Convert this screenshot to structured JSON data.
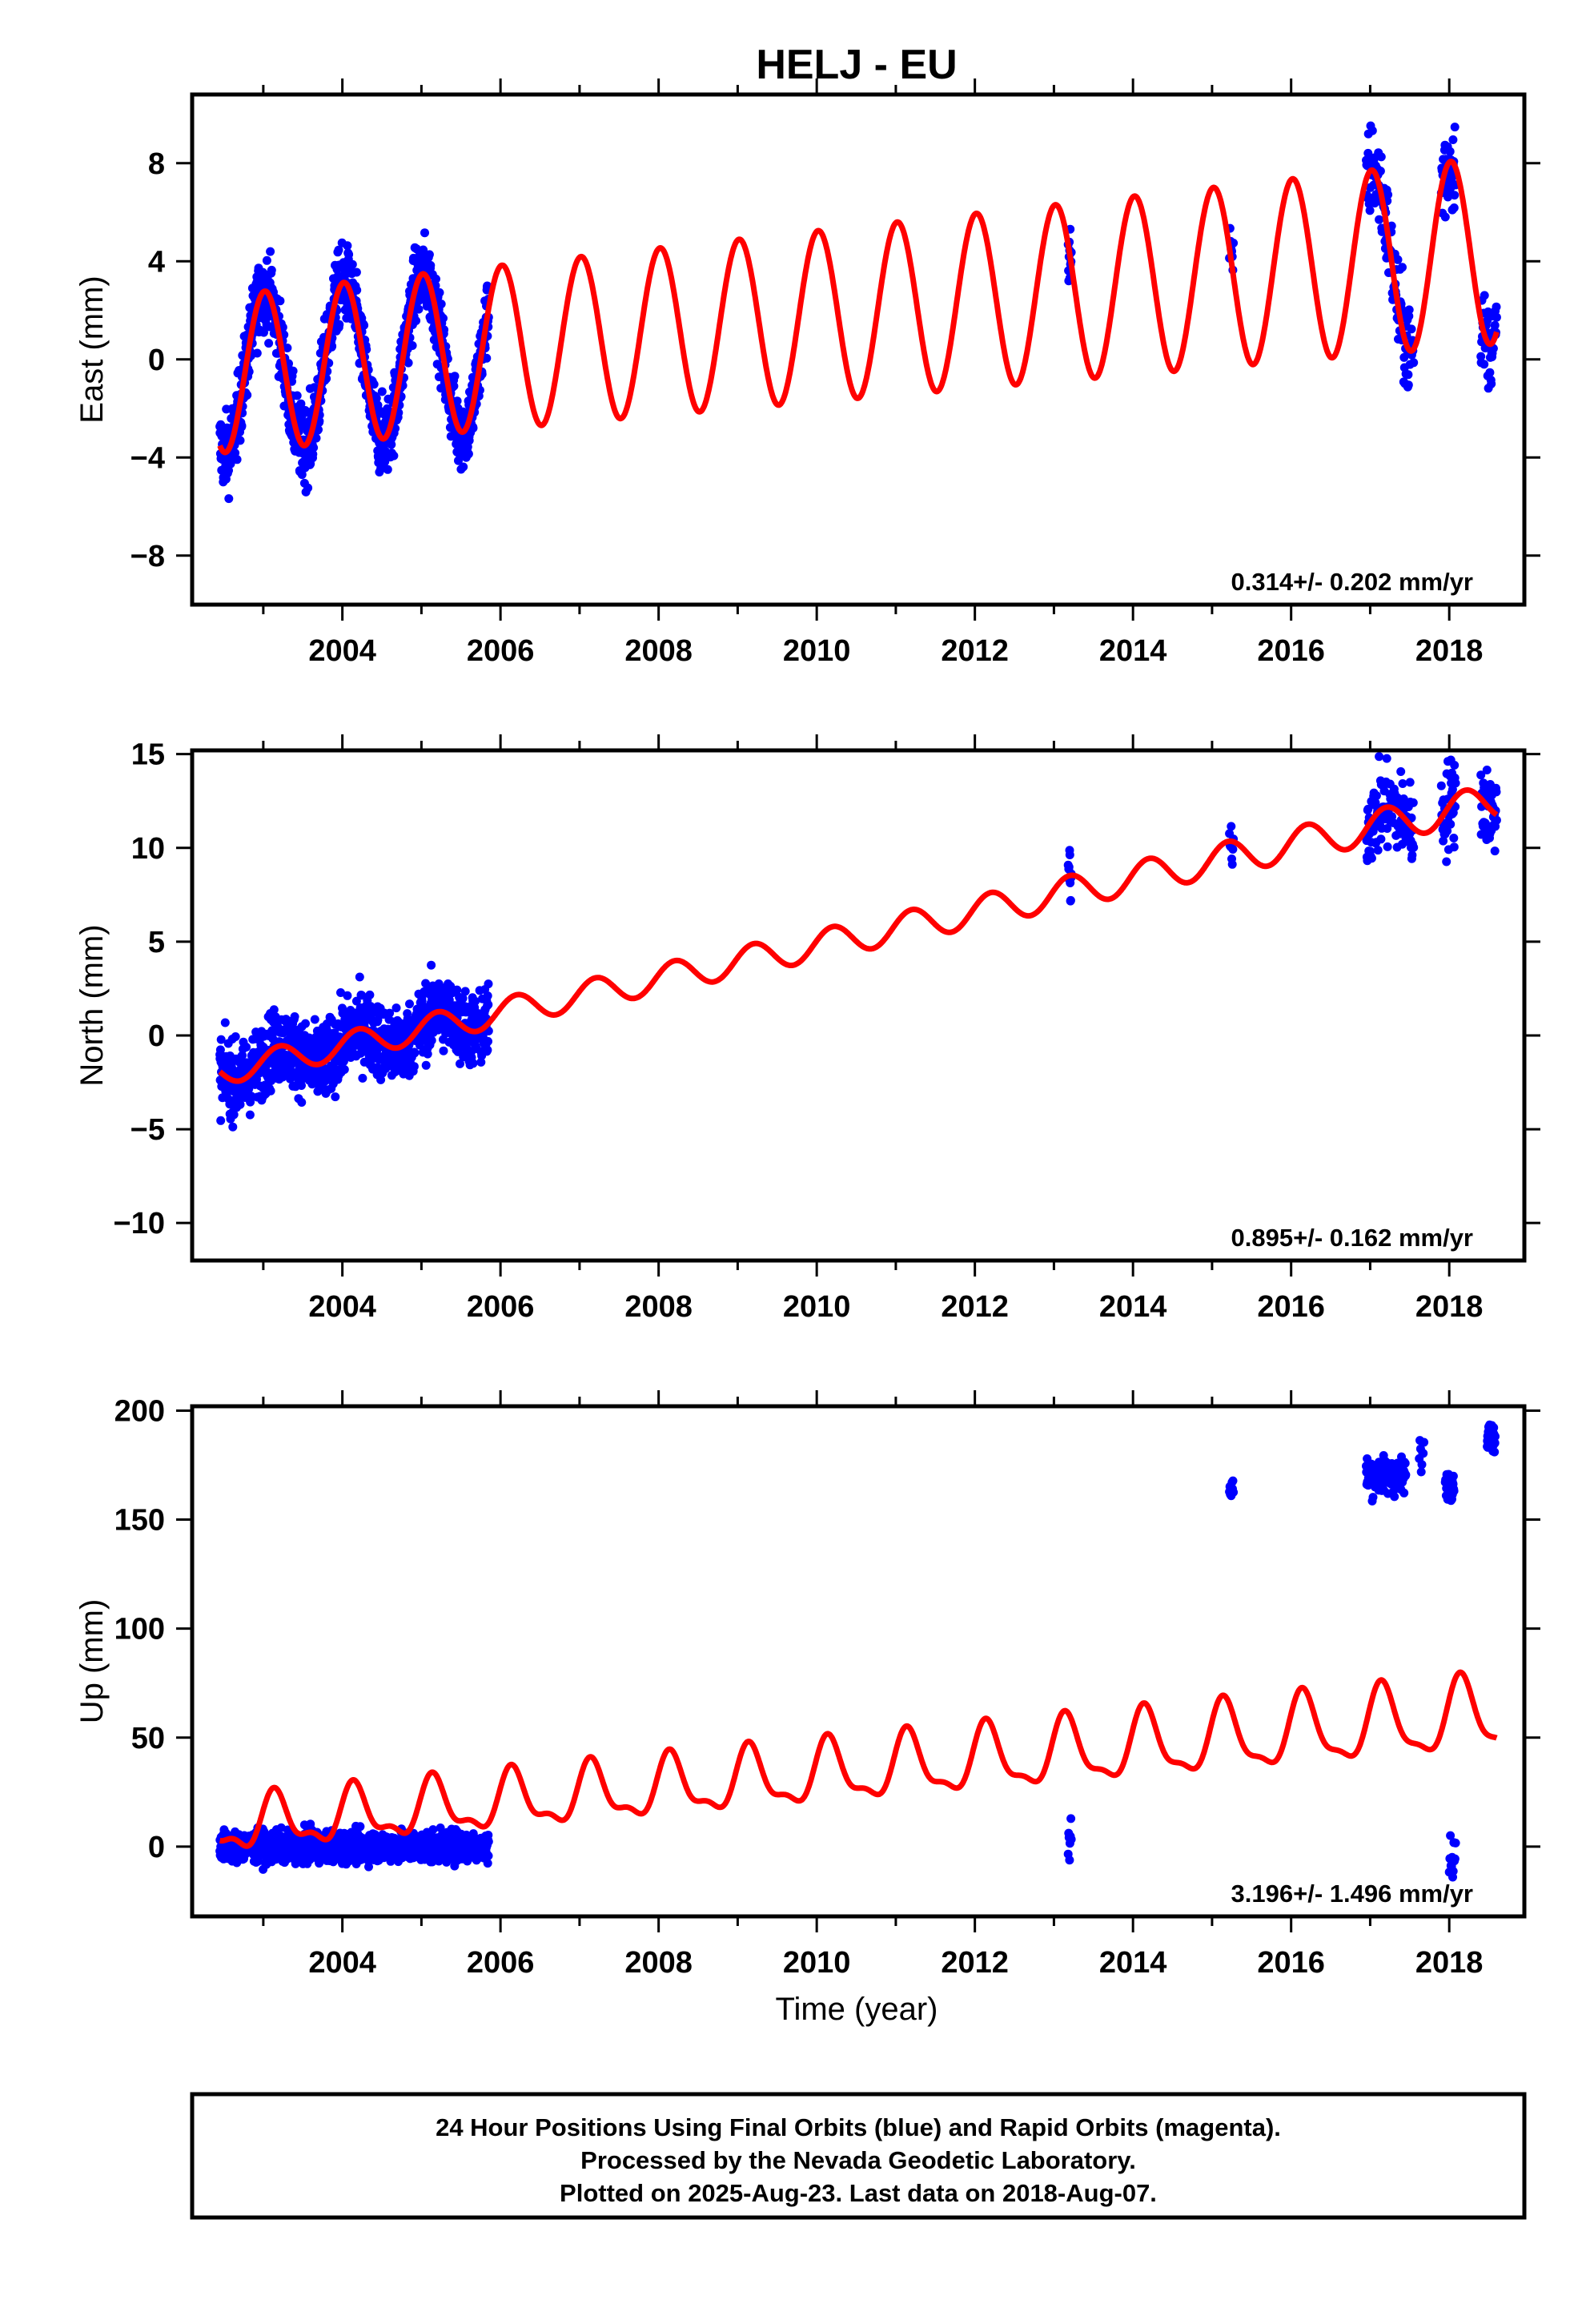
{
  "title": "HELJ - EU",
  "colors": {
    "observed": "#0000ff",
    "model": "#ff0000"
  },
  "xlabel": "Time (year)",
  "footer": {
    "line1": "24 Hour Positions Using Final Orbits (blue) and Rapid Orbits (magenta).",
    "line2": "Processed by the Nevada Geodetic Laboratory.",
    "line3": "Plotted on 2025-Aug-23. Last data on 2018-Aug-07."
  },
  "chart_data": [
    {
      "type": "scatter",
      "id": "east",
      "ylabel": "East (mm)",
      "xlim": [
        2002.1,
        2018.95
      ],
      "ylim": [
        -10,
        10.8
      ],
      "xticks": [
        2004,
        2006,
        2008,
        2010,
        2012,
        2014,
        2016,
        2018
      ],
      "yticks": [
        -8,
        -4,
        0,
        4,
        8
      ],
      "ytick_labels": [
        "−8",
        "−4",
        "0",
        "4",
        "8"
      ],
      "rate_label": "0.314+/- 0.202 mm/yr",
      "model": {
        "name": "fit",
        "offset": -0.6,
        "trend_per_year": 0.314,
        "trend_ref_year": 2002.5,
        "annual_amp": 3.2,
        "annual_phase": 1.45,
        "amp_growth": 0.012
      },
      "observed_segments": [
        {
          "x_start": 2002.45,
          "x_end": 2005.85,
          "samples": 1200,
          "noise": 1.1
        },
        {
          "x_start": 2013.18,
          "x_end": 2013.22,
          "samples": 12,
          "noise": 1.2
        },
        {
          "x_start": 2015.22,
          "x_end": 2015.27,
          "samples": 8,
          "noise": 1.0
        },
        {
          "x_start": 2016.95,
          "x_end": 2017.55,
          "samples": 130,
          "noise": 1.4
        },
        {
          "x_start": 2017.9,
          "x_end": 2018.08,
          "samples": 40,
          "noise": 1.6
        },
        {
          "x_start": 2018.4,
          "x_end": 2018.6,
          "samples": 45,
          "noise": 1.2
        }
      ]
    },
    {
      "type": "scatter",
      "id": "north",
      "ylabel": "North (mm)",
      "xlim": [
        2002.1,
        2018.95
      ],
      "ylim": [
        -12,
        15.2
      ],
      "xticks": [
        2004,
        2006,
        2008,
        2010,
        2012,
        2014,
        2016,
        2018
      ],
      "yticks": [
        -10,
        -5,
        0,
        5,
        10,
        15
      ],
      "ytick_labels": [
        "−10",
        "−5",
        "0",
        "5",
        "10",
        "15"
      ],
      "rate_label": "0.895+/- 0.162 mm/yr",
      "model": {
        "name": "fit",
        "offset": -1.9,
        "trend_per_year": 0.895,
        "trend_ref_year": 2002.5,
        "annual_amp": 0.7,
        "annual_phase": 0.3,
        "amp_growth": 0.02
      },
      "observed_segments": [
        {
          "x_start": 2002.45,
          "x_end": 2005.85,
          "samples": 1200,
          "noise": 1.4
        },
        {
          "x_start": 2013.18,
          "x_end": 2013.22,
          "samples": 12,
          "noise": 1.2
        },
        {
          "x_start": 2015.22,
          "x_end": 2015.27,
          "samples": 8,
          "noise": 1.0
        },
        {
          "x_start": 2016.95,
          "x_end": 2017.55,
          "samples": 130,
          "noise": 1.6
        },
        {
          "x_start": 2017.9,
          "x_end": 2018.08,
          "samples": 40,
          "noise": 1.8
        },
        {
          "x_start": 2018.4,
          "x_end": 2018.6,
          "samples": 45,
          "noise": 1.5
        }
      ]
    },
    {
      "type": "scatter",
      "id": "up",
      "ylabel": "Up (mm)",
      "xlim": [
        2002.1,
        2018.95
      ],
      "ylim": [
        -32,
        202
      ],
      "xticks": [
        2004,
        2006,
        2008,
        2010,
        2012,
        2014,
        2016,
        2018
      ],
      "yticks": [
        0,
        50,
        100,
        150,
        200
      ],
      "ytick_labels": [
        "0",
        "50",
        "100",
        "150",
        "200"
      ],
      "rate_label": "3.196+/- 1.496 mm/yr",
      "model": {
        "name": "fit",
        "offset": 9,
        "trend_per_year": 3.196,
        "trend_ref_year": 2002.5,
        "annual_amp": 11,
        "annual_phase": 0.6,
        "semiannual_amp": 5,
        "amp_growth": 0.03
      },
      "observed_segments": [
        {
          "x_start": 2002.45,
          "x_end": 2005.85,
          "samples": 1200,
          "noise": 5,
          "center": 0
        },
        {
          "x_start": 2013.18,
          "x_end": 2013.22,
          "samples": 8,
          "noise": 8,
          "center": 5
        },
        {
          "x_start": 2015.22,
          "x_end": 2015.27,
          "samples": 10,
          "noise": 5,
          "center": 164
        },
        {
          "x_start": 2016.95,
          "x_end": 2017.45,
          "samples": 140,
          "noise": 6,
          "center": 170
        },
        {
          "x_start": 2017.62,
          "x_end": 2017.68,
          "samples": 8,
          "noise": 5,
          "center": 180
        },
        {
          "x_start": 2017.95,
          "x_end": 2018.06,
          "samples": 30,
          "noise": 5,
          "center": 167
        },
        {
          "x_start": 2018.0,
          "x_end": 2018.08,
          "samples": 12,
          "noise": 6,
          "center": -5
        },
        {
          "x_start": 2018.48,
          "x_end": 2018.58,
          "samples": 40,
          "noise": 5,
          "center": 188
        }
      ]
    }
  ]
}
